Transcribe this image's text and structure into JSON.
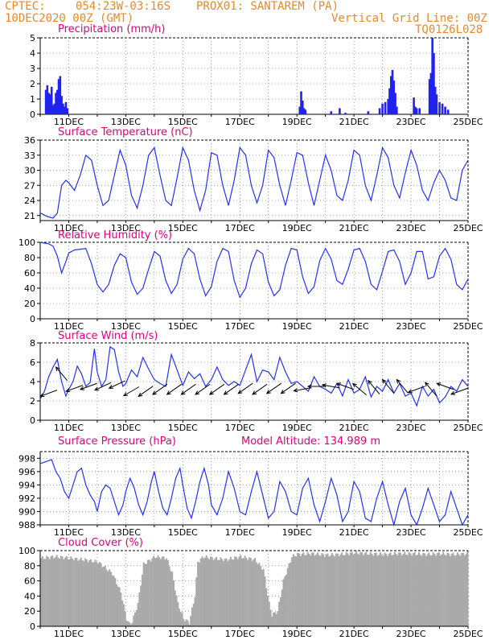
{
  "header": {
    "source": "CPTEC:",
    "coords": "054:23W-03:16S",
    "location": "PROX01: SANTAREM (PA)",
    "date": "10DEC2020 00Z (GMT)",
    "grid_note": "Vertical Grid Line: 00Z",
    "code": "TQ0126L028"
  },
  "colors": {
    "header": "#e8892b",
    "title": "#e0007a",
    "series": "#2233ee",
    "bars": "#2222ee",
    "cloud": "#aaaaaa",
    "arrow": "#000000"
  },
  "chart_data": [
    {
      "id": "precip",
      "type": "bar",
      "title": "Precipitation (mm/h)",
      "ylim": [
        0,
        5
      ],
      "yticks": [
        0,
        1,
        2,
        3,
        4,
        5
      ],
      "x_unit": "days since 10DEC 00Z",
      "x_tick_labels": [
        "11DEC",
        "13DEC",
        "15DEC",
        "17DEC",
        "19DEC",
        "21DEC",
        "23DEC",
        "25DEC"
      ],
      "x_tick_days": [
        1,
        3,
        5,
        7,
        9,
        11,
        13,
        15
      ],
      "x": [
        0.2,
        0.25,
        0.3,
        0.35,
        0.4,
        0.45,
        0.5,
        0.55,
        0.6,
        0.65,
        0.7,
        0.75,
        0.8,
        0.85,
        0.9,
        0.95,
        9.1,
        9.15,
        9.2,
        9.25,
        9.3,
        10.2,
        10.5,
        10.7,
        11.5,
        11.9,
        12.0,
        12.1,
        12.2,
        12.25,
        12.3,
        12.35,
        12.4,
        12.45,
        12.5,
        13.1,
        13.15,
        13.2,
        13.3,
        13.65,
        13.7,
        13.75,
        13.8,
        13.85,
        13.9,
        14.0,
        14.1,
        14.2,
        14.3
      ],
      "values": [
        1.6,
        1.9,
        1.4,
        1.3,
        1.8,
        0.6,
        0.7,
        1.4,
        1.6,
        2.3,
        2.5,
        1.2,
        0.7,
        0.5,
        0.8,
        0.4,
        0.5,
        1.5,
        0.9,
        0.4,
        0.3,
        0.2,
        0.4,
        0.1,
        0.2,
        0.4,
        0.7,
        0.8,
        1.0,
        1.7,
        2.5,
        2.9,
        2.2,
        1.4,
        0.5,
        1.1,
        0.5,
        0.4,
        0.4,
        2.3,
        2.7,
        5.0,
        4.0,
        1.8,
        1.3,
        0.8,
        0.7,
        0.5,
        0.3
      ]
    },
    {
      "id": "temp",
      "type": "line",
      "title": "Surface Temperature (nC)",
      "ylim": [
        20,
        36
      ],
      "yticks": [
        21,
        24,
        27,
        30,
        33,
        36
      ],
      "x_tick_labels": [
        "11DEC",
        "13DEC",
        "15DEC",
        "17DEC",
        "19DEC",
        "21DEC",
        "23DEC",
        "25DEC"
      ],
      "x_tick_days": [
        1,
        3,
        5,
        7,
        9,
        11,
        13,
        15
      ],
      "x": [
        0,
        0.25,
        0.45,
        0.6,
        0.75,
        0.9,
        1.0,
        1.2,
        1.4,
        1.6,
        1.8,
        2.0,
        2.2,
        2.4,
        2.6,
        2.8,
        3.0,
        3.2,
        3.4,
        3.6,
        3.8,
        4.0,
        4.2,
        4.4,
        4.6,
        4.8,
        5.0,
        5.2,
        5.4,
        5.6,
        5.8,
        6.0,
        6.2,
        6.4,
        6.6,
        6.8,
        7.0,
        7.2,
        7.4,
        7.6,
        7.8,
        8.0,
        8.2,
        8.4,
        8.6,
        8.8,
        9.0,
        9.2,
        9.4,
        9.6,
        9.8,
        10.0,
        10.2,
        10.4,
        10.6,
        10.8,
        11.0,
        11.2,
        11.4,
        11.6,
        11.8,
        12.0,
        12.2,
        12.4,
        12.6,
        12.8,
        13.0,
        13.2,
        13.4,
        13.6,
        13.8,
        14.0,
        14.2,
        14.4,
        14.6,
        14.8,
        15.0
      ],
      "values": [
        21.5,
        20.8,
        20.5,
        21.5,
        27.0,
        28.0,
        27.5,
        26.0,
        29.0,
        33.0,
        32.0,
        27.0,
        23.0,
        24.0,
        29.0,
        34.0,
        31.0,
        25.0,
        22.5,
        27.0,
        33.0,
        34.5,
        29.0,
        24.0,
        23.0,
        28.5,
        34.5,
        32.0,
        26.0,
        22.0,
        26.0,
        33.5,
        33.0,
        27.0,
        23.0,
        28.0,
        34.5,
        33.0,
        27.0,
        23.5,
        27.0,
        34.0,
        32.5,
        27.0,
        23.0,
        28.0,
        33.5,
        33.0,
        27.5,
        23.0,
        28.0,
        33.0,
        30.0,
        25.0,
        24.0,
        28.0,
        34.0,
        33.0,
        27.0,
        24.0,
        29.0,
        34.5,
        32.5,
        27.0,
        24.5,
        29.5,
        34.0,
        31.0,
        26.0,
        24.0,
        27.5,
        30.0,
        28.0,
        24.5,
        24.0,
        30.0,
        32.0
      ]
    },
    {
      "id": "rh",
      "type": "line",
      "title": "Relative Humidity (%)",
      "ylim": [
        0,
        100
      ],
      "yticks": [
        0,
        20,
        40,
        60,
        80,
        100
      ],
      "x_tick_labels": [
        "11DEC",
        "13DEC",
        "15DEC",
        "17DEC",
        "19DEC",
        "21DEC",
        "23DEC",
        "25DEC"
      ],
      "x_tick_days": [
        1,
        3,
        5,
        7,
        9,
        11,
        13,
        15
      ],
      "x": [
        0,
        0.3,
        0.45,
        0.6,
        0.75,
        0.9,
        1.0,
        1.2,
        1.4,
        1.6,
        1.8,
        2.0,
        2.2,
        2.4,
        2.6,
        2.8,
        3.0,
        3.2,
        3.4,
        3.6,
        3.8,
        4.0,
        4.2,
        4.4,
        4.6,
        4.8,
        5.0,
        5.2,
        5.4,
        5.6,
        5.8,
        6.0,
        6.2,
        6.4,
        6.6,
        6.8,
        7.0,
        7.2,
        7.4,
        7.6,
        7.8,
        8.0,
        8.2,
        8.4,
        8.6,
        8.8,
        9.0,
        9.2,
        9.4,
        9.6,
        9.8,
        10.0,
        10.2,
        10.4,
        10.6,
        10.8,
        11.0,
        11.2,
        11.4,
        11.6,
        11.8,
        12.0,
        12.2,
        12.4,
        12.6,
        12.8,
        13.0,
        13.2,
        13.4,
        13.6,
        13.8,
        14.0,
        14.2,
        14.4,
        14.6,
        14.8,
        15.0
      ],
      "values": [
        100,
        98,
        95,
        82,
        60,
        75,
        86,
        90,
        91,
        92,
        72,
        45,
        35,
        45,
        70,
        85,
        80,
        48,
        32,
        40,
        65,
        88,
        82,
        50,
        33,
        45,
        78,
        92,
        85,
        52,
        30,
        42,
        75,
        92,
        88,
        50,
        28,
        40,
        72,
        90,
        85,
        48,
        30,
        38,
        70,
        92,
        90,
        55,
        33,
        42,
        76,
        92,
        78,
        50,
        45,
        65,
        90,
        92,
        75,
        45,
        38,
        62,
        88,
        90,
        75,
        45,
        60,
        88,
        88,
        52,
        55,
        82,
        92,
        78,
        45,
        38,
        52
      ]
    },
    {
      "id": "wind",
      "type": "line",
      "title": "Surface Wind (m/s)",
      "ylim": [
        0,
        8
      ],
      "yticks": [
        0,
        2,
        4,
        6,
        8
      ],
      "x_tick_labels": [
        "11DEC",
        "13DEC",
        "15DEC",
        "17DEC",
        "19DEC",
        "21DEC",
        "23DEC",
        "25DEC"
      ],
      "x_tick_days": [
        1,
        3,
        5,
        7,
        9,
        11,
        13,
        15
      ],
      "x": [
        0,
        0.15,
        0.3,
        0.45,
        0.6,
        0.75,
        0.9,
        1.0,
        1.15,
        1.3,
        1.45,
        1.6,
        1.75,
        1.9,
        2.0,
        2.15,
        2.3,
        2.45,
        2.6,
        2.75,
        2.9,
        3.0,
        3.2,
        3.4,
        3.6,
        3.8,
        4.0,
        4.2,
        4.4,
        4.6,
        4.8,
        5.0,
        5.2,
        5.4,
        5.6,
        5.8,
        6.0,
        6.2,
        6.4,
        6.6,
        6.8,
        7.0,
        7.2,
        7.4,
        7.6,
        7.8,
        8.0,
        8.2,
        8.4,
        8.6,
        8.8,
        9.0,
        9.2,
        9.4,
        9.6,
        9.8,
        10.0,
        10.2,
        10.4,
        10.6,
        10.8,
        11.0,
        11.2,
        11.4,
        11.6,
        11.8,
        12.0,
        12.2,
        12.4,
        12.6,
        12.8,
        13.0,
        13.2,
        13.4,
        13.6,
        13.8,
        14.0,
        14.2,
        14.4,
        14.6,
        14.8,
        15.0
      ],
      "values": [
        2.2,
        3.0,
        4.5,
        5.5,
        6.3,
        4.0,
        2.5,
        3.2,
        4.0,
        5.6,
        4.8,
        3.5,
        3.9,
        7.4,
        5.0,
        3.5,
        4.2,
        7.6,
        7.3,
        5.0,
        3.5,
        3.8,
        5.2,
        4.5,
        6.5,
        5.3,
        4.2,
        3.8,
        3.5,
        6.8,
        5.2,
        3.6,
        5.0,
        4.3,
        4.8,
        3.5,
        4.2,
        5.5,
        4.2,
        3.6,
        4.0,
        3.6,
        5.2,
        6.8,
        4.0,
        5.2,
        5.0,
        4.2,
        6.5,
        5.0,
        3.8,
        4.0,
        3.5,
        3.0,
        4.5,
        3.5,
        3.2,
        2.8,
        3.8,
        2.5,
        4.2,
        2.8,
        3.2,
        4.5,
        2.4,
        3.5,
        3.0,
        4.2,
        2.8,
        3.8,
        2.5,
        2.8,
        1.5,
        3.5,
        2.5,
        3.2,
        1.8,
        2.4,
        3.5,
        3.0,
        4.2,
        3.5
      ]
    },
    {
      "id": "pressure",
      "type": "line",
      "title": "Surface Pressure (hPa)",
      "annotation": "Model Altitude: 134.989 m",
      "ylim": [
        988,
        999
      ],
      "yticks": [
        988,
        990,
        992,
        994,
        996,
        998
      ],
      "x_tick_labels": [
        "11DEC",
        "13DEC",
        "15DEC",
        "17DEC",
        "19DEC",
        "21DEC",
        "23DEC",
        "25DEC"
      ],
      "x_tick_days": [
        1,
        3,
        5,
        7,
        9,
        11,
        13,
        15
      ],
      "x": [
        0,
        0.2,
        0.4,
        0.55,
        0.7,
        0.85,
        1.0,
        1.15,
        1.3,
        1.45,
        1.6,
        1.75,
        1.9,
        2.0,
        2.15,
        2.3,
        2.45,
        2.6,
        2.75,
        2.9,
        3.0,
        3.15,
        3.3,
        3.45,
        3.6,
        3.75,
        3.9,
        4.0,
        4.15,
        4.3,
        4.45,
        4.6,
        4.75,
        4.9,
        5.0,
        5.15,
        5.3,
        5.45,
        5.6,
        5.75,
        5.9,
        6.0,
        6.2,
        6.4,
        6.6,
        6.8,
        7.0,
        7.2,
        7.4,
        7.6,
        7.8,
        8.0,
        8.2,
        8.4,
        8.6,
        8.8,
        9.0,
        9.2,
        9.4,
        9.6,
        9.8,
        10.0,
        10.2,
        10.4,
        10.6,
        10.8,
        11.0,
        11.2,
        11.4,
        11.6,
        11.8,
        12.0,
        12.2,
        12.4,
        12.6,
        12.8,
        13.0,
        13.2,
        13.4,
        13.6,
        13.8,
        14.0,
        14.2,
        14.4,
        14.6,
        14.8,
        15.0
      ],
      "values": [
        997.2,
        997.5,
        997.8,
        996.0,
        995.0,
        993.0,
        992.0,
        994.0,
        996.0,
        996.5,
        994.0,
        992.5,
        991.5,
        990.0,
        993.0,
        994.0,
        993.5,
        991.5,
        989.5,
        991.0,
        993.0,
        995.0,
        993.5,
        991.0,
        989.5,
        991.5,
        994.5,
        996.0,
        993.0,
        990.5,
        989.5,
        992.0,
        995.0,
        996.5,
        994.0,
        990.5,
        989.0,
        991.5,
        994.5,
        996.5,
        994.0,
        991.0,
        989.5,
        992.0,
        996.0,
        993.5,
        990.0,
        989.5,
        993.0,
        996.0,
        992.5,
        989.0,
        990.0,
        994.5,
        993.0,
        990.0,
        989.5,
        993.5,
        995.0,
        991.0,
        988.5,
        991.5,
        995.0,
        992.5,
        988.5,
        990.0,
        994.5,
        993.0,
        989.0,
        988.5,
        992.0,
        994.5,
        991.0,
        988.0,
        991.5,
        993.5,
        989.5,
        988.0,
        990.5,
        993.5,
        991.0,
        988.5,
        989.5,
        993.0,
        990.5,
        988.0,
        989.5
      ]
    },
    {
      "id": "cloud",
      "type": "area",
      "title": "Cloud Cover (%)",
      "ylim": [
        0,
        100
      ],
      "yticks": [
        0,
        20,
        40,
        60,
        80,
        100
      ],
      "x_tick_labels": [
        "11DEC",
        "13DEC",
        "15DEC",
        "17DEC",
        "19DEC",
        "21DEC",
        "23DEC",
        "25DEC"
      ],
      "x_tick_days": [
        1,
        3,
        5,
        7,
        9,
        11,
        13,
        15
      ],
      "x": [
        0,
        0.5,
        1.0,
        1.5,
        2.0,
        2.5,
        2.8,
        3.0,
        3.1,
        3.2,
        3.4,
        3.6,
        4.0,
        4.4,
        4.6,
        4.8,
        5.0,
        5.2,
        5.4,
        5.5,
        5.7,
        6.0,
        6.5,
        7.0,
        7.5,
        7.8,
        8.0,
        8.1,
        8.3,
        8.5,
        8.8,
        9.0,
        9.5,
        10.0,
        10.5,
        11.0,
        11.5,
        12.0,
        12.5,
        13.0,
        13.5,
        14.0,
        14.5,
        15.0
      ],
      "values": [
        90,
        92,
        90,
        88,
        85,
        70,
        45,
        10,
        3,
        6,
        30,
        82,
        92,
        90,
        70,
        30,
        10,
        5,
        40,
        85,
        92,
        90,
        88,
        92,
        88,
        75,
        30,
        15,
        20,
        60,
        92,
        95,
        96,
        94,
        95,
        97,
        96,
        95,
        96,
        96,
        95,
        96,
        95,
        96
      ]
    },
    {
      "id": "wind_dir",
      "type": "scatter",
      "title": "",
      "x": [
        0.3,
        0.75,
        1.2,
        1.7,
        2.2,
        2.7,
        3.2,
        3.7,
        4.2,
        4.7,
        5.2,
        5.7,
        6.2,
        6.7,
        7.2,
        7.7,
        8.2,
        8.7,
        9.2,
        9.7,
        10.2,
        10.7,
        11.2,
        11.7,
        12.2,
        12.7,
        13.2,
        13.7,
        14.2,
        14.7
      ],
      "y": [
        2.8,
        4.8,
        3.3,
        3.5,
        3.5,
        3.7,
        3.0,
        3.0,
        3.2,
        3.2,
        3.2,
        3.2,
        3.2,
        3.2,
        3.3,
        3.2,
        3.3,
        3.3,
        3.2,
        3.5,
        3.5,
        3.5,
        3.2,
        3.4,
        3.5,
        3.5,
        3.2,
        3.2,
        3.5,
        3.0
      ],
      "angle_deg": [
        200,
        130,
        200,
        200,
        205,
        205,
        210,
        215,
        215,
        215,
        215,
        215,
        215,
        215,
        215,
        215,
        215,
        215,
        190,
        180,
        170,
        160,
        140,
        130,
        130,
        130,
        200,
        130,
        160,
        200
      ]
    }
  ]
}
